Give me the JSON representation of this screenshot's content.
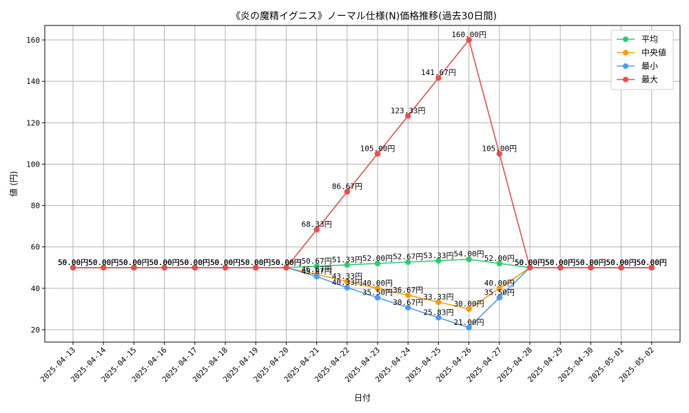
{
  "chart_data": {
    "type": "line",
    "title": "《炎の魔精イグニス》ノーマル仕様(N)価格推移(過去30日間)",
    "xlabel": "日付",
    "ylabel": "値 (円)",
    "ylim": [
      14,
      167
    ],
    "yticks": [
      20,
      40,
      60,
      80,
      100,
      120,
      140,
      160
    ],
    "grid": true,
    "legend_position": "top-right",
    "value_suffix": "円",
    "categories": [
      "2025-04-13",
      "2025-04-14",
      "2025-04-15",
      "2025-04-16",
      "2025-04-17",
      "2025-04-18",
      "2025-04-19",
      "2025-04-20",
      "2025-04-21",
      "2025-04-22",
      "2025-04-23",
      "2025-04-24",
      "2025-04-25",
      "2025-04-26",
      "2025-04-27",
      "2025-04-28",
      "2025-04-29",
      "2025-04-30",
      "2025-05-01",
      "2025-05-02"
    ],
    "series": [
      {
        "name": "平均",
        "color": "#2ecc71",
        "values": [
          50,
          50,
          50,
          50,
          50,
          50,
          50,
          50,
          50.67,
          51.33,
          52.0,
          52.67,
          53.33,
          54.0,
          52.0,
          50,
          50,
          50,
          50,
          50
        ]
      },
      {
        "name": "中央値",
        "color": "#f39c12",
        "values": [
          50,
          50,
          50,
          50,
          50,
          50,
          50,
          50,
          46.67,
          43.33,
          40.0,
          36.67,
          33.33,
          30.0,
          40.0,
          50,
          50,
          50,
          50,
          50
        ]
      },
      {
        "name": "最小",
        "color": "#4a9bf0",
        "values": [
          50,
          50,
          50,
          50,
          50,
          50,
          50,
          50,
          45.67,
          40.33,
          35.5,
          30.67,
          25.83,
          21.0,
          35.5,
          50,
          50,
          50,
          50,
          50
        ]
      },
      {
        "name": "最大",
        "color": "#f04a4a",
        "values": [
          50,
          50,
          50,
          50,
          50,
          50,
          50,
          50,
          68.33,
          86.67,
          105.0,
          123.33,
          141.67,
          160.0,
          105.0,
          50,
          50,
          50,
          50,
          50
        ]
      }
    ]
  }
}
